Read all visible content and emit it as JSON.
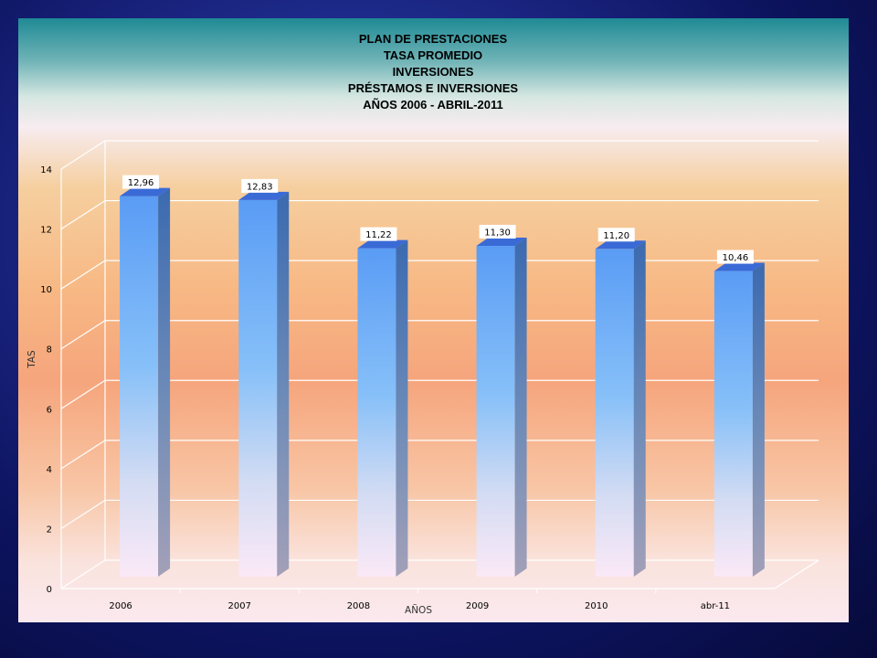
{
  "chart_data": {
    "type": "bar",
    "title_lines": [
      "PLAN DE PRESTACIONES",
      "TASA PROMEDIO",
      "INVERSIONES",
      "PRÉSTAMOS E INVERSIONES",
      "AÑOS 2006 - ABRIL-2011"
    ],
    "categories": [
      "2006",
      "2007",
      "2008",
      "2009",
      "2010",
      "abr-11"
    ],
    "values": [
      12.96,
      12.83,
      11.22,
      11.3,
      11.2,
      10.46
    ],
    "data_labels": [
      "12,96",
      "12,83",
      "11,22",
      "11,30",
      "11,20",
      "10,46"
    ],
    "xlabel": "AÑOS",
    "ylabel": "TAS",
    "ylim": [
      0,
      14
    ],
    "yticks": [
      0,
      2,
      4,
      6,
      8,
      10,
      12,
      14
    ],
    "grid": true,
    "legend": "none",
    "colors": {
      "bar_top": "#5a9cf5",
      "bar_mid": "#8ec4f7",
      "bar_bottom": "#fbe9f7",
      "bar_side": "#3c6eb8",
      "bar_cap": "#3a6ad6"
    }
  }
}
